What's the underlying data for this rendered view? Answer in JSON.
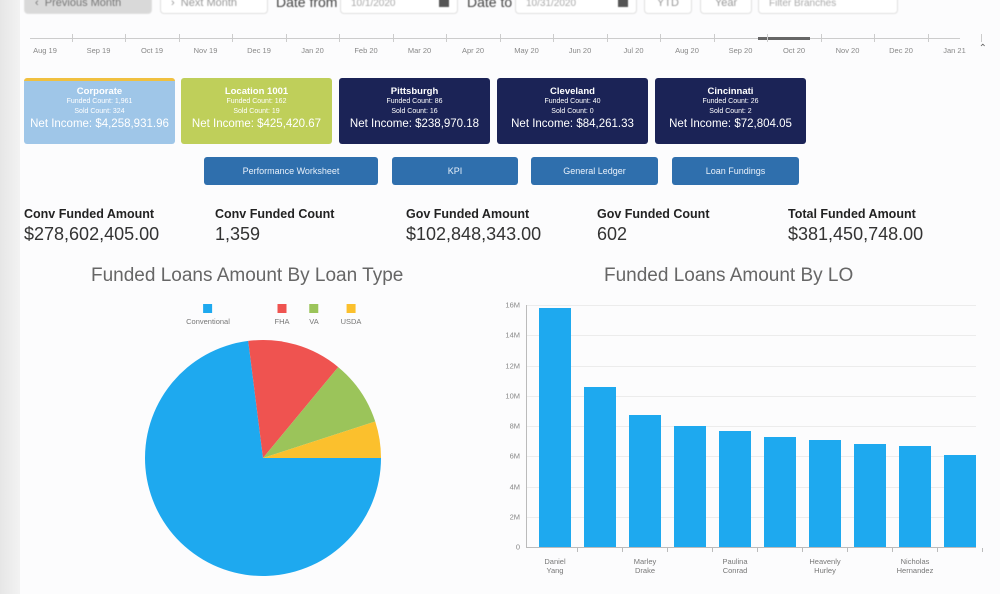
{
  "toolbar": {
    "previous_month": "Previous Month",
    "next_month": "Next Month",
    "date_from_label": "Date from",
    "date_from_value": "10/1/2020",
    "date_to_label": "Date to",
    "date_to_value": "10/31/2020",
    "ytd_label": "YTD",
    "year_label": "Year",
    "filter_placeholder": "Filter Branches"
  },
  "timeline": {
    "months": [
      "Aug 19",
      "Sep 19",
      "Oct 19",
      "Nov 19",
      "Dec 19",
      "Jan 20",
      "Feb 20",
      "Mar 20",
      "Apr 20",
      "May 20",
      "Jun 20",
      "Jul 20",
      "Aug 20",
      "Sep 20",
      "Oct 20",
      "Nov 20",
      "Dec 20",
      "Jan 21"
    ],
    "selected": "Oct 20"
  },
  "branches": [
    {
      "name": "Corporate",
      "funded": "Funded Count: 1,961",
      "sold": "Sold Count: 324",
      "net": "Net Income: $4,258,931.96"
    },
    {
      "name": "Location 1001",
      "funded": "Funded Count: 162",
      "sold": "Sold Count: 19",
      "net": "Net Income: $425,420.67"
    },
    {
      "name": "Pittsburgh",
      "funded": "Funded Count: 86",
      "sold": "Sold Count: 16",
      "net": "Net Income: $238,970.18"
    },
    {
      "name": "Cleveland",
      "funded": "Funded Count: 40",
      "sold": "Sold Count: 0",
      "net": "Net Income: $84,261.33"
    },
    {
      "name": "Cincinnati",
      "funded": "Funded Count: 26",
      "sold": "Sold Count: 2",
      "net": "Net Income: $72,804.05"
    }
  ],
  "nav": {
    "performance": "Performance Worksheet",
    "kpi": "KPI",
    "ledger": "General Ledger",
    "fundings": "Loan Fundings"
  },
  "kpis": [
    {
      "label": "Conv Funded Amount",
      "value": "$278,602,405.00"
    },
    {
      "label": "Conv Funded Count",
      "value": "1,359"
    },
    {
      "label": "Gov Funded Amount",
      "value": "$102,848,343.00"
    },
    {
      "label": "Gov Funded Count",
      "value": "602"
    },
    {
      "label": "Total Funded Amount",
      "value": "$381,450,748.00"
    }
  ],
  "colors": {
    "conventional": "#1ea9ef",
    "fha": "#ef5350",
    "va": "#9bc45a",
    "usda": "#fbc02d",
    "bar": "#1ea9ef",
    "nav_button": "#2f6fad",
    "card_dark": "#1b2356"
  },
  "chart_data": [
    {
      "type": "pie",
      "title": "Funded Loans Amount By Loan Type",
      "categories": [
        "Conventional",
        "FHA",
        "VA",
        "USDA"
      ],
      "values": [
        73,
        13,
        9,
        5
      ],
      "legend_position": "top"
    },
    {
      "type": "bar",
      "title": "Funded Loans Amount By LO",
      "categories": [
        "Daniel Yang",
        "",
        "Marley Drake",
        "",
        "Paulina Conrad",
        "",
        "Heavenly Hurley",
        "",
        "Nicholas Hernandez",
        ""
      ],
      "values": [
        15800000,
        10600000,
        8700000,
        8000000,
        7700000,
        7300000,
        7100000,
        6800000,
        6700000,
        6100000
      ],
      "xlabel": "",
      "ylabel": "",
      "yticks": [
        "0",
        "2M",
        "4M",
        "6M",
        "8M",
        "10M",
        "12M",
        "14M",
        "16M"
      ],
      "ylim": [
        0,
        16000000
      ],
      "grid": true
    }
  ]
}
